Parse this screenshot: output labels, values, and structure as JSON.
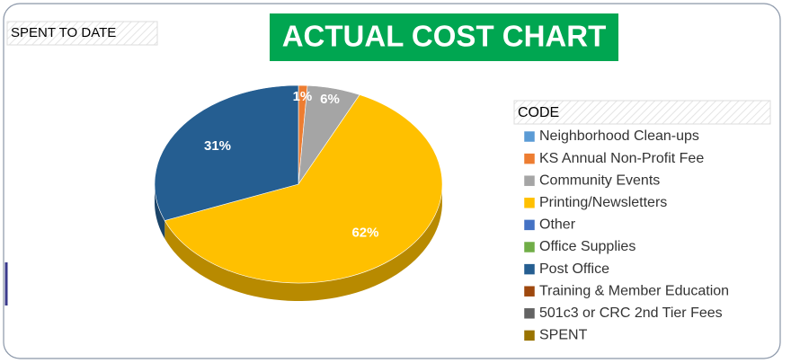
{
  "chart_data": {
    "type": "pie",
    "title": "ACTUAL COST CHART",
    "subtitle": "SPENT TO DATE",
    "legend_title": "CODE",
    "categories": [
      "Neighborhood Clean-ups",
      "KS Annual Non-Profit Fee",
      "Community Events",
      "Printing/Newsletters",
      "Other",
      "Office Supplies",
      "Post Office",
      "Training & Member Education",
      "501c3 or CRC 2nd Tier Fees",
      "SPENT"
    ],
    "values": [
      0,
      1,
      6,
      62,
      0,
      0,
      31,
      0,
      0,
      0
    ],
    "value_labels": [
      null,
      "1%",
      "6%",
      "62%",
      null,
      null,
      "31%",
      null,
      null,
      null
    ],
    "colors": [
      "#5b9bd5",
      "#ed7d31",
      "#a5a5a5",
      "#ffc000",
      "#4472c4",
      "#70ad47",
      "#255e91",
      "#9e480e",
      "#636363",
      "#997300"
    ],
    "legend_position": "right"
  }
}
